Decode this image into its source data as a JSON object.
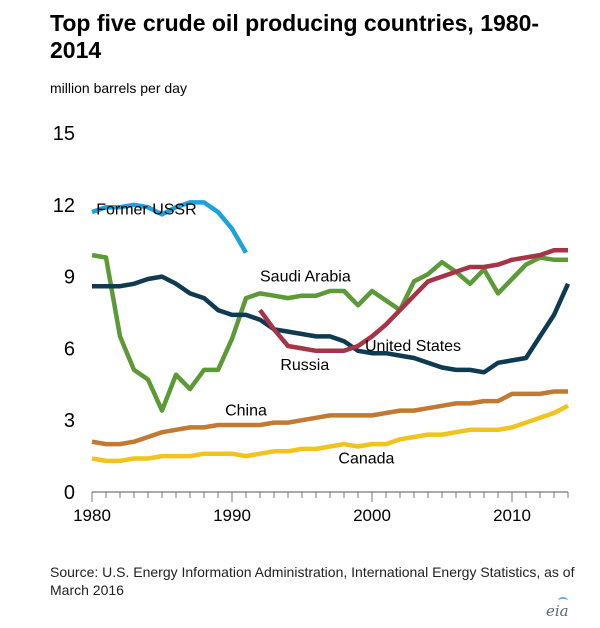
{
  "title": "Top five crude oil producing countries, 1980-2014",
  "unit_label": "million barrels per day",
  "source": "Source: U.S. Energy Information Administration, International Energy Statistics, as of March 2016",
  "logo_text": "eia",
  "chart_data": {
    "type": "line",
    "title": "Top five crude oil producing countries, 1980-2014",
    "ylabel": "million barrels per day",
    "xlim": [
      1980,
      2014
    ],
    "ylim": [
      0,
      15
    ],
    "x_ticks": [
      "1980",
      "1990",
      "2000",
      "2010"
    ],
    "y_ticks": [
      "0",
      "3",
      "6",
      "9",
      "12",
      "15"
    ],
    "grid": false,
    "legend": "direct labels on lines",
    "series": [
      {
        "name": "Former USSR",
        "color": "#1ea2dc",
        "x": [
          1980,
          1981,
          1982,
          1983,
          1984,
          1985,
          1986,
          1987,
          1988,
          1989,
          1990,
          1991
        ],
        "values": [
          11.7,
          11.9,
          11.9,
          12.0,
          11.9,
          11.6,
          11.9,
          12.1,
          12.1,
          11.7,
          11.0,
          10.0
        ]
      },
      {
        "name": "Saudi Arabia",
        "color": "#5b9a36",
        "x": [
          1980,
          1981,
          1982,
          1983,
          1984,
          1985,
          1986,
          1987,
          1988,
          1989,
          1990,
          1991,
          1992,
          1993,
          1994,
          1995,
          1996,
          1997,
          1998,
          1999,
          2000,
          2001,
          2002,
          2003,
          2004,
          2005,
          2006,
          2007,
          2008,
          2009,
          2010,
          2011,
          2012,
          2013,
          2014
        ],
        "values": [
          9.9,
          9.8,
          6.5,
          5.1,
          4.7,
          3.4,
          4.9,
          4.3,
          5.1,
          5.1,
          6.4,
          8.1,
          8.3,
          8.2,
          8.1,
          8.2,
          8.2,
          8.4,
          8.4,
          7.8,
          8.4,
          8.0,
          7.6,
          8.8,
          9.1,
          9.6,
          9.2,
          8.7,
          9.3,
          8.3,
          8.9,
          9.5,
          9.8,
          9.7,
          9.7
        ]
      },
      {
        "name": "United States",
        "color": "#0e3a52",
        "x": [
          1980,
          1981,
          1982,
          1983,
          1984,
          1985,
          1986,
          1987,
          1988,
          1989,
          1990,
          1991,
          1992,
          1993,
          1994,
          1995,
          1996,
          1997,
          1998,
          1999,
          2000,
          2001,
          2002,
          2003,
          2004,
          2005,
          2006,
          2007,
          2008,
          2009,
          2010,
          2011,
          2012,
          2013,
          2014
        ],
        "values": [
          8.6,
          8.6,
          8.6,
          8.7,
          8.9,
          9.0,
          8.7,
          8.3,
          8.1,
          7.6,
          7.4,
          7.4,
          7.2,
          6.8,
          6.7,
          6.6,
          6.5,
          6.5,
          6.3,
          5.9,
          5.8,
          5.8,
          5.7,
          5.6,
          5.4,
          5.2,
          5.1,
          5.1,
          5.0,
          5.4,
          5.5,
          5.6,
          6.5,
          7.4,
          8.7
        ]
      },
      {
        "name": "Russia",
        "color": "#a63446",
        "x": [
          1992,
          1993,
          1994,
          1995,
          1996,
          1997,
          1998,
          1999,
          2000,
          2001,
          2002,
          2003,
          2004,
          2005,
          2006,
          2007,
          2008,
          2009,
          2010,
          2011,
          2012,
          2013,
          2014
        ],
        "values": [
          7.6,
          6.8,
          6.1,
          6.0,
          5.9,
          5.9,
          5.9,
          6.1,
          6.5,
          7.0,
          7.6,
          8.2,
          8.8,
          9.0,
          9.2,
          9.4,
          9.4,
          9.5,
          9.7,
          9.8,
          9.9,
          10.1,
          10.1
        ]
      },
      {
        "name": "China",
        "color": "#c27a33",
        "x": [
          1980,
          1981,
          1982,
          1983,
          1984,
          1985,
          1986,
          1987,
          1988,
          1989,
          1990,
          1991,
          1992,
          1993,
          1994,
          1995,
          1996,
          1997,
          1998,
          1999,
          2000,
          2001,
          2002,
          2003,
          2004,
          2005,
          2006,
          2007,
          2008,
          2009,
          2010,
          2011,
          2012,
          2013,
          2014
        ],
        "values": [
          2.1,
          2.0,
          2.0,
          2.1,
          2.3,
          2.5,
          2.6,
          2.7,
          2.7,
          2.8,
          2.8,
          2.8,
          2.8,
          2.9,
          2.9,
          3.0,
          3.1,
          3.2,
          3.2,
          3.2,
          3.2,
          3.3,
          3.4,
          3.4,
          3.5,
          3.6,
          3.7,
          3.7,
          3.8,
          3.8,
          4.1,
          4.1,
          4.1,
          4.2,
          4.2
        ]
      },
      {
        "name": "Canada",
        "color": "#f2c41b",
        "x": [
          1980,
          1981,
          1982,
          1983,
          1984,
          1985,
          1986,
          1987,
          1988,
          1989,
          1990,
          1991,
          1992,
          1993,
          1994,
          1995,
          1996,
          1997,
          1998,
          1999,
          2000,
          2001,
          2002,
          2003,
          2004,
          2005,
          2006,
          2007,
          2008,
          2009,
          2010,
          2011,
          2012,
          2013,
          2014
        ],
        "values": [
          1.4,
          1.3,
          1.3,
          1.4,
          1.4,
          1.5,
          1.5,
          1.5,
          1.6,
          1.6,
          1.6,
          1.5,
          1.6,
          1.7,
          1.7,
          1.8,
          1.8,
          1.9,
          2.0,
          1.9,
          2.0,
          2.0,
          2.2,
          2.3,
          2.4,
          2.4,
          2.5,
          2.6,
          2.6,
          2.6,
          2.7,
          2.9,
          3.1,
          3.3,
          3.6
        ]
      }
    ]
  }
}
